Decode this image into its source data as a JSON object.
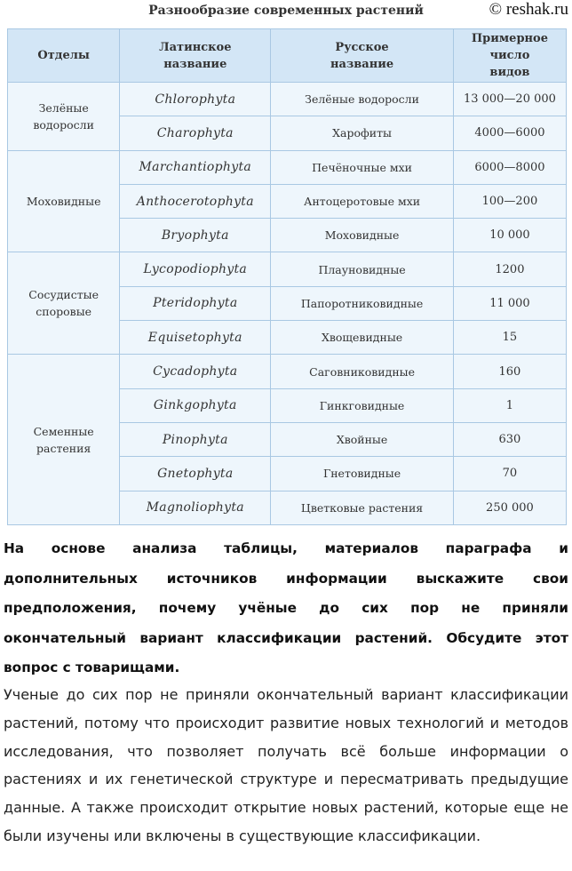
{
  "watermark": "© reshak.ru",
  "table": {
    "title": "Разнообразие современных растений",
    "headers": [
      "Отделы",
      "Латинское название",
      "Русское название",
      "Примерное число видов"
    ],
    "groups": [
      {
        "name": "Зелёные водоросли",
        "rows": [
          [
            "Chlorophyta",
            "Зелёные водоросли",
            "13 000—20 000"
          ],
          [
            "Charophyta",
            "Харофиты",
            "4000—6000"
          ]
        ]
      },
      {
        "name": "Моховидные",
        "rows": [
          [
            "Marchantiophyta",
            "Печёночные мхи",
            "6000—8000"
          ],
          [
            "Anthocerotophyta",
            "Антоцеротовые мхи",
            "100—200"
          ],
          [
            "Bryophyta",
            "Моховидные",
            "10 000"
          ]
        ]
      },
      {
        "name": "Сосудистые споровые",
        "rows": [
          [
            "Lycopodiophyta",
            "Плауновидные",
            "1200"
          ],
          [
            "Pteridophyta",
            "Папоротниковидные",
            "11 000"
          ],
          [
            "Equisetophyta",
            "Хвощевидные",
            "15"
          ]
        ]
      },
      {
        "name": "Семенные растения",
        "rows": [
          [
            "Cycadophyta",
            "Саговниковидные",
            "160"
          ],
          [
            "Ginkgophyta",
            "Гинкговидные",
            "1"
          ],
          [
            "Pinophyta",
            "Хвойные",
            "630"
          ],
          [
            "Gnetophyta",
            "Гнетовидные",
            "70"
          ],
          [
            "Magnoliophyta",
            "Цветковые растения",
            "250 000"
          ]
        ]
      }
    ]
  },
  "question": "На основе анализа таблицы, материалов параграфа и дополнительных источников информации выскажите свои предположения, почему учёные до сих пор не приняли окончательный вариант классификации растений. Обсудите этот вопрос с товарищами.",
  "answer": "Ученые до сих пор не приняли окончательный вариант классификации растений, потому что происходит развитие новых технологий и методов исследования, что позволяет получать всё больше информации о растениях и их генетической структуре и пересматривать предыдущие данные. А также происходит открытие новых растений, которые еще не были изучены или включены в существующие классификации."
}
